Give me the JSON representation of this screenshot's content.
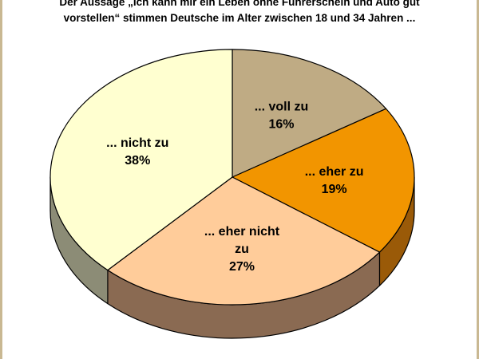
{
  "chart_data": {
    "type": "pie",
    "title_lines": [
      "Der Aussage „Ich kann mir ein Leben ohne Führerschein und Auto gut",
      "vorstellen“ stimmen Deutsche im Alter zwischen 18 und 34 Jahren ..."
    ],
    "three_d": true,
    "legend": "none",
    "slices": [
      {
        "label": "... voll zu",
        "value": 16,
        "value_label": "16%",
        "color": "#bfab84",
        "side_color": "#8a7a57"
      },
      {
        "label": "... eher zu",
        "value": 19,
        "value_label": "19%",
        "color": "#f29500",
        "side_color": "#9a5a08"
      },
      {
        "label": "... eher nicht zu",
        "label_lines": [
          "... eher nicht",
          "zu"
        ],
        "value": 27,
        "value_label": "27%",
        "color": "#ffcc9a",
        "side_color": "#8a6a52"
      },
      {
        "label": "... nicht zu",
        "value": 38,
        "value_label": "38%",
        "color": "#ffffd0",
        "side_color": "#8c8c76"
      }
    ]
  }
}
